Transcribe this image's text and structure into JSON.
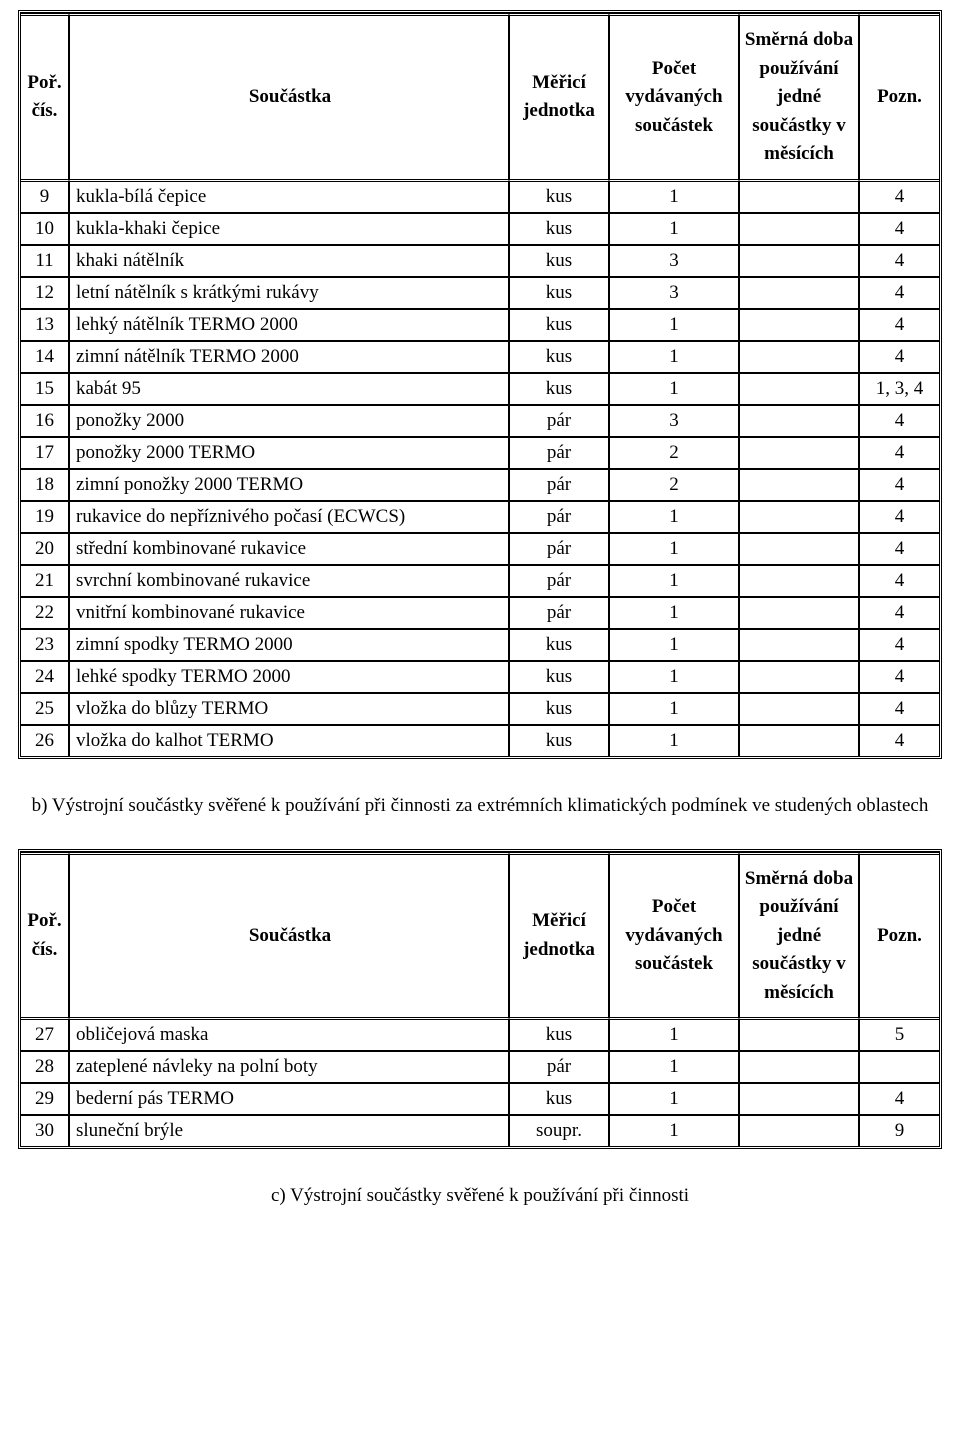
{
  "headers": {
    "por": "Poř. čís.",
    "soucastka": "Součástka",
    "merici": "Měřicí jednotka",
    "pocet": "Počet vydávaných součástek",
    "smerna": "Směrná doba používání jedné součástky v měsících",
    "pozn": "Pozn."
  },
  "table1": [
    {
      "n": "9",
      "name": "kukla-bílá čepice",
      "unit": "kus",
      "count": "1",
      "dur": "",
      "note": "4"
    },
    {
      "n": "10",
      "name": "kukla-khaki čepice",
      "unit": "kus",
      "count": "1",
      "dur": "",
      "note": "4"
    },
    {
      "n": "11",
      "name": "khaki nátělník",
      "unit": "kus",
      "count": "3",
      "dur": "",
      "note": "4"
    },
    {
      "n": "12",
      "name": "letní nátělník s krátkými rukávy",
      "unit": "kus",
      "count": "3",
      "dur": "",
      "note": "4"
    },
    {
      "n": "13",
      "name": "lehký nátělník TERMO 2000",
      "unit": "kus",
      "count": "1",
      "dur": "",
      "note": "4"
    },
    {
      "n": "14",
      "name": "zimní nátělník TERMO 2000",
      "unit": "kus",
      "count": "1",
      "dur": "",
      "note": "4"
    },
    {
      "n": "15",
      "name": "kabát 95",
      "unit": "kus",
      "count": "1",
      "dur": "",
      "note": "1, 3, 4"
    },
    {
      "n": "16",
      "name": "ponožky 2000",
      "unit": "pár",
      "count": "3",
      "dur": "",
      "note": "4"
    },
    {
      "n": "17",
      "name": "ponožky 2000 TERMO",
      "unit": "pár",
      "count": "2",
      "dur": "",
      "note": "4"
    },
    {
      "n": "18",
      "name": "zimní ponožky 2000 TERMO",
      "unit": "pár",
      "count": "2",
      "dur": "",
      "note": "4"
    },
    {
      "n": "19",
      "name": "rukavice do nepříznivého počasí (ECWCS)",
      "unit": "pár",
      "count": "1",
      "dur": "",
      "note": "4"
    },
    {
      "n": "20",
      "name": "střední kombinované rukavice",
      "unit": "pár",
      "count": "1",
      "dur": "",
      "note": "4"
    },
    {
      "n": "21",
      "name": "svrchní kombinované rukavice",
      "unit": "pár",
      "count": "1",
      "dur": "",
      "note": "4"
    },
    {
      "n": "22",
      "name": "vnitřní kombinované rukavice",
      "unit": "pár",
      "count": "1",
      "dur": "",
      "note": "4"
    },
    {
      "n": "23",
      "name": "zimní spodky TERMO 2000",
      "unit": "kus",
      "count": "1",
      "dur": "",
      "note": "4"
    },
    {
      "n": "24",
      "name": "lehké spodky TERMO 2000",
      "unit": "kus",
      "count": "1",
      "dur": "",
      "note": "4"
    },
    {
      "n": "25",
      "name": "vložka do blůzy TERMO",
      "unit": "kus",
      "count": "1",
      "dur": "",
      "note": "4"
    },
    {
      "n": "26",
      "name": "vložka do kalhot TERMO",
      "unit": "kus",
      "count": "1",
      "dur": "",
      "note": "4"
    }
  ],
  "section_b": "b) Výstrojní součástky svěřené k používání při činnosti za extrémních klimatických podmínek ve studených oblastech",
  "table2": [
    {
      "n": "27",
      "name": "obličejová maska",
      "unit": "kus",
      "count": "1",
      "dur": "",
      "note": "5"
    },
    {
      "n": "28",
      "name": "zateplené návleky na polní boty",
      "unit": "pár",
      "count": "1",
      "dur": "",
      "note": ""
    },
    {
      "n": "29",
      "name": "bederní pás TERMO",
      "unit": "kus",
      "count": "1",
      "dur": "",
      "note": "4"
    },
    {
      "n": "30",
      "name": "sluneční brýle",
      "unit": "soupr.",
      "count": "1",
      "dur": "",
      "note": "9"
    }
  ],
  "section_c": "c) Výstrojní součástky svěřené k používání při činnosti"
}
